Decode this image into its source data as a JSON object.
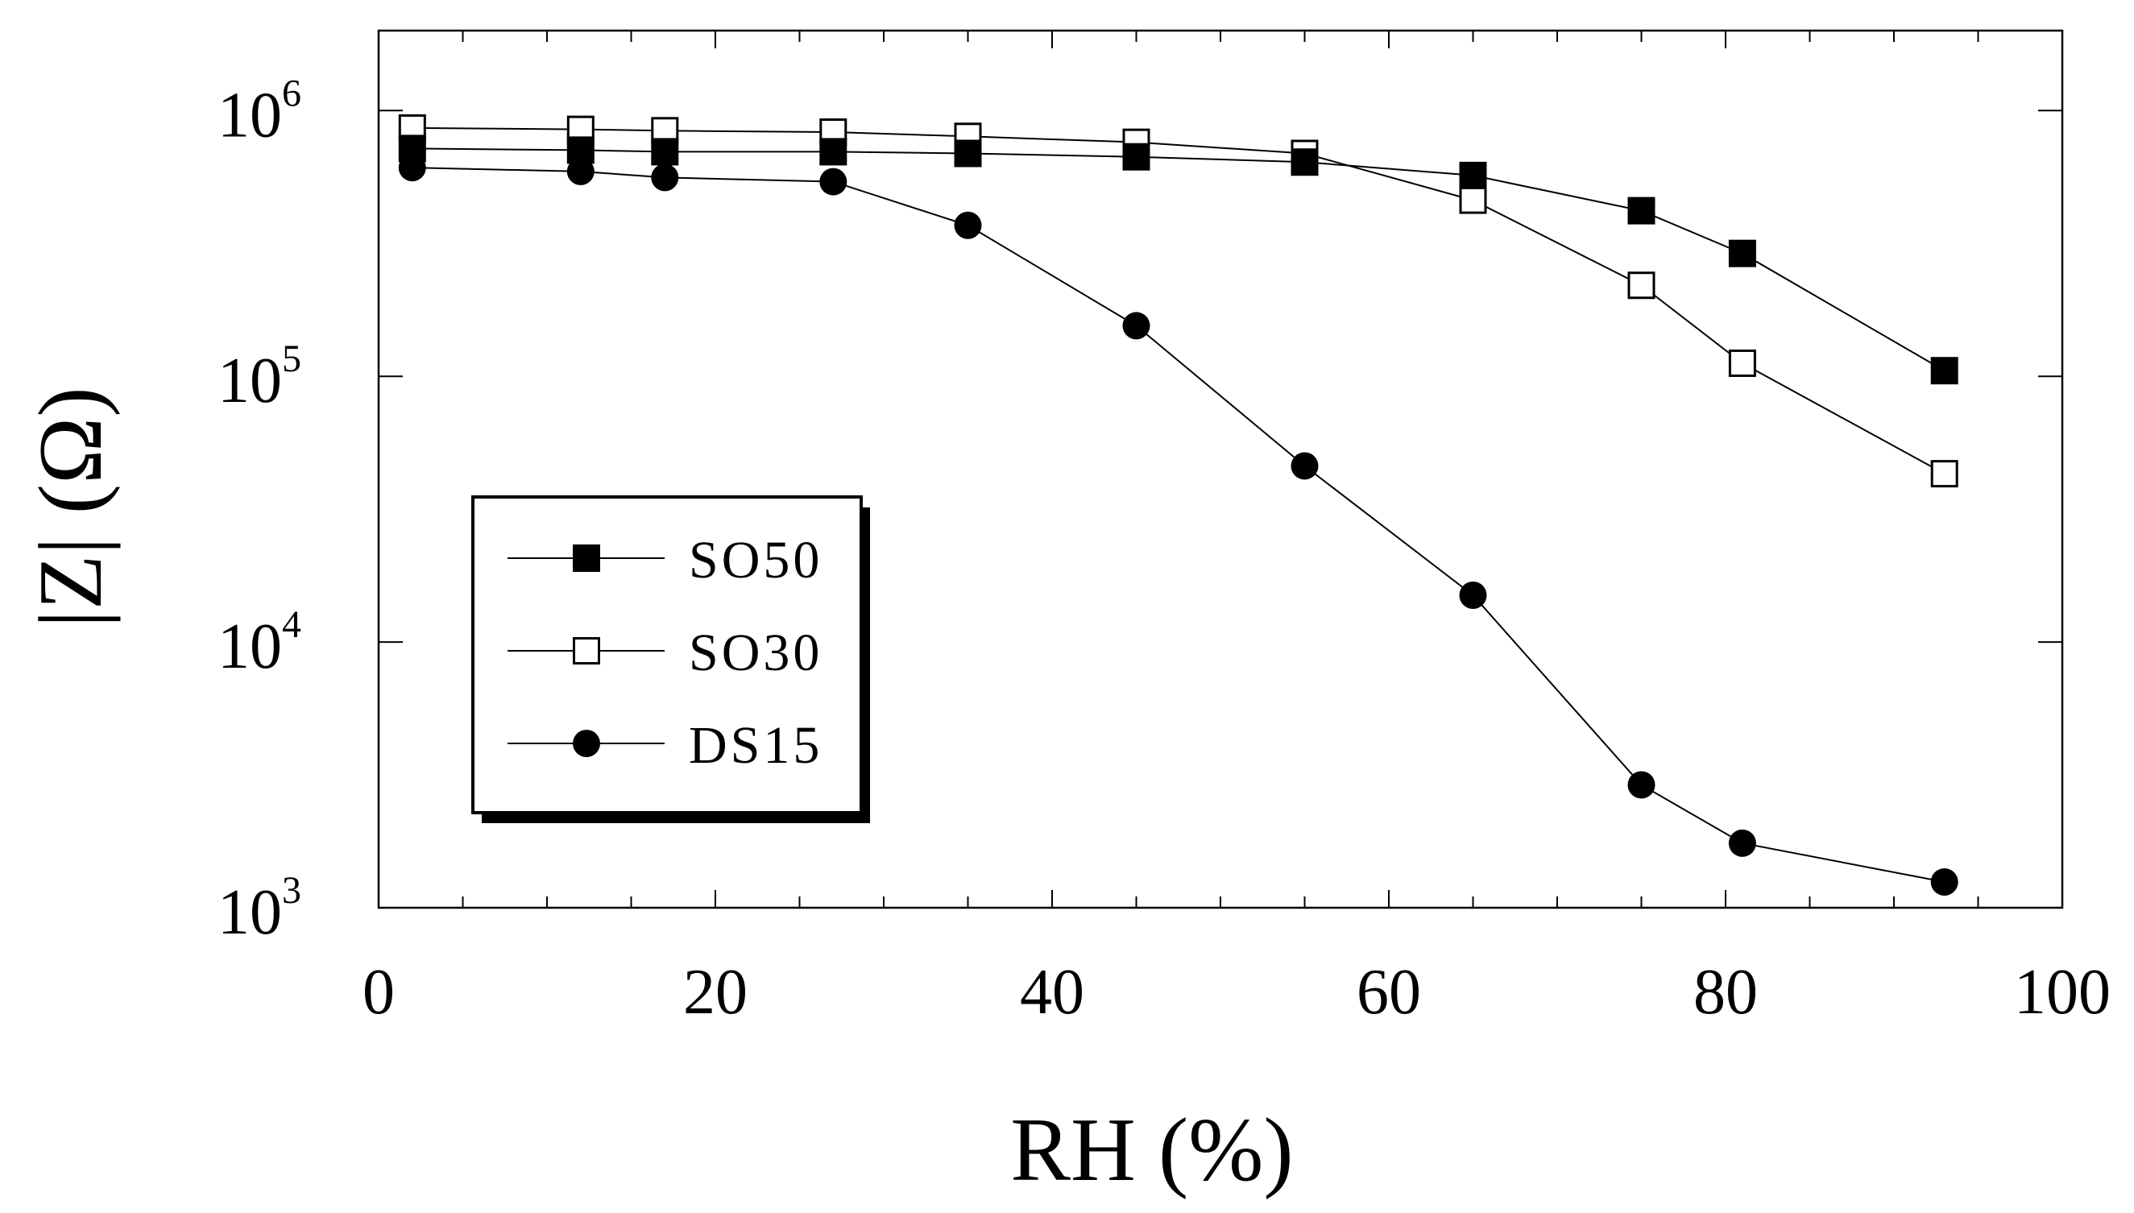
{
  "chart_data": {
    "type": "line",
    "title": "",
    "xlabel": "RH (%)",
    "ylabel": "|Z| (Ω)",
    "xlim": [
      0,
      100
    ],
    "ylim": [
      1000,
      2000000
    ],
    "yscale": "log",
    "x_ticks": [
      "0",
      "20",
      "40",
      "60",
      "80",
      "100"
    ],
    "y_ticks": [
      {
        "base": "10",
        "exp": "3"
      },
      {
        "base": "10",
        "exp": "4"
      },
      {
        "base": "10",
        "exp": "5"
      },
      {
        "base": "10",
        "exp": "6"
      }
    ],
    "legend_position": "lower-left",
    "grid": false,
    "series": [
      {
        "name": "SO50",
        "marker": "filled-square",
        "points": [
          [
            2,
            720000
          ],
          [
            12,
            710000
          ],
          [
            17,
            700000
          ],
          [
            27,
            700000
          ],
          [
            35,
            690000
          ],
          [
            45,
            670000
          ],
          [
            55,
            640000
          ],
          [
            65,
            570000
          ],
          [
            75,
            420000
          ],
          [
            81,
            290000
          ],
          [
            93,
            105000
          ]
        ]
      },
      {
        "name": "SO30",
        "marker": "open-square",
        "points": [
          [
            2,
            860000
          ],
          [
            12,
            850000
          ],
          [
            17,
            840000
          ],
          [
            27,
            830000
          ],
          [
            35,
            800000
          ],
          [
            45,
            760000
          ],
          [
            55,
            690000
          ],
          [
            65,
            460000
          ],
          [
            75,
            220000
          ],
          [
            81,
            112000
          ],
          [
            93,
            43000
          ]
        ]
      },
      {
        "name": "DS15",
        "marker": "filled-circle",
        "points": [
          [
            2,
            610000
          ],
          [
            12,
            590000
          ],
          [
            17,
            560000
          ],
          [
            27,
            540000
          ],
          [
            35,
            370000
          ],
          [
            45,
            155000
          ],
          [
            55,
            46000
          ],
          [
            65,
            15000
          ],
          [
            75,
            2900
          ],
          [
            81,
            1750
          ],
          [
            93,
            1250
          ]
        ]
      }
    ]
  }
}
